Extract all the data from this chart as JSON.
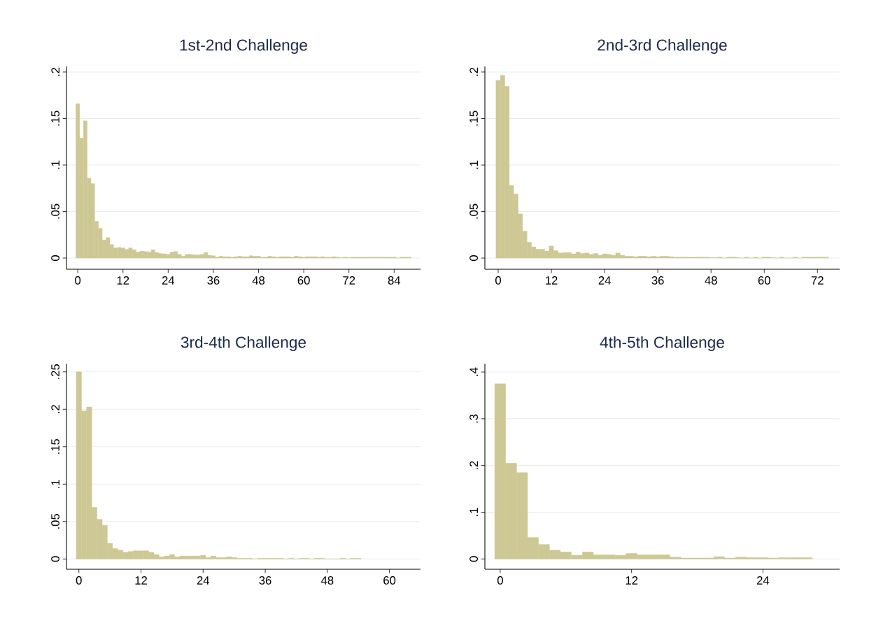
{
  "chart_data": [
    {
      "type": "histogram",
      "title": "1st-2nd Challenge",
      "color": "#cdc894",
      "grid": "y",
      "bins": [
        -0.5,
        0.5,
        1.5,
        2.5,
        3.5,
        4.5,
        5.5,
        6.5,
        7.5,
        8.5,
        9.5,
        10.5,
        11.5,
        12.5,
        13.5,
        14.5,
        15.5,
        16.5,
        17.5,
        18.5,
        19.5,
        20.5,
        21.5,
        22.5,
        23.5,
        24.5,
        25.5,
        26.5,
        27.5,
        28.5,
        29.5,
        30.5,
        31.5,
        32.5,
        33.5,
        34.5,
        35.5,
        36.5,
        37.5,
        38.5,
        39.5,
        40.5,
        41.5,
        42.5,
        43.5,
        44.5,
        45.5,
        46.5,
        47.5,
        48.5,
        49.5,
        50.5,
        51.5,
        52.5,
        53.5,
        54.5,
        55.5,
        56.5,
        57.5,
        58.5,
        59.5,
        60.5,
        61.5,
        62.5,
        63.5,
        64.5,
        65.5,
        66.5,
        67.5,
        68.5,
        69.5,
        70.5,
        71.5,
        72.5,
        73.5,
        74.5,
        75.5,
        76.5,
        77.5,
        78.5,
        79.5,
        80.5,
        81.5,
        82.5,
        83.5,
        84.5,
        85.5,
        86.5,
        87.5,
        88.5
      ],
      "values": [
        0.166,
        0.129,
        0.1475,
        0.086,
        0.08,
        0.0395,
        0.032,
        0.0195,
        0.022,
        0.0145,
        0.011,
        0.0115,
        0.011,
        0.0095,
        0.011,
        0.009,
        0.0065,
        0.0075,
        0.007,
        0.0065,
        0.009,
        0.006,
        0.005,
        0.0045,
        0.004,
        0.0065,
        0.007,
        0.004,
        0.002,
        0.004,
        0.004,
        0.0035,
        0.0035,
        0.004,
        0.006,
        0.003,
        0.0025,
        0.001,
        0.002,
        0.0015,
        0.0015,
        0.001,
        0.0015,
        0.002,
        0.0015,
        0.0015,
        0.0025,
        0.002,
        0.002,
        0.001,
        0.001,
        0.002,
        0.0015,
        0.001,
        0.0015,
        0.0015,
        0.0015,
        0.001,
        0.002,
        0.0015,
        0.001,
        0.0015,
        0.0015,
        0.0015,
        0.001,
        0.0015,
        0.001,
        0.001,
        0.0015,
        0.001,
        0.0005,
        0.001,
        0.0005,
        0.001,
        0.001,
        0.001,
        0.001,
        0.001,
        0.001,
        0.001,
        0.001,
        0.001,
        0.001,
        0.001,
        0.001,
        0,
        0.001,
        0.001,
        0.001
      ],
      "xlim": [
        -3,
        91
      ],
      "ylim": [
        -0.012,
        0.206
      ],
      "xticks": [
        0,
        12,
        24,
        36,
        48,
        60,
        72,
        84
      ],
      "yticks": [
        0,
        {
          "value": 0.05,
          "label": ".05"
        },
        {
          "value": 0.1,
          "label": ".1"
        },
        {
          "value": 0.15,
          "label": ".15"
        },
        {
          "value": 0.2,
          "label": ".2"
        }
      ]
    },
    {
      "type": "histogram",
      "title": "2nd-3rd Challenge",
      "color": "#cdc894",
      "grid": "y",
      "bins": [
        -0.5,
        0.5,
        1.5,
        2.5,
        3.5,
        4.5,
        5.5,
        6.5,
        7.5,
        8.5,
        9.5,
        10.5,
        11.5,
        12.5,
        13.5,
        14.5,
        15.5,
        16.5,
        17.5,
        18.5,
        19.5,
        20.5,
        21.5,
        22.5,
        23.5,
        24.5,
        25.5,
        26.5,
        27.5,
        28.5,
        29.5,
        30.5,
        31.5,
        32.5,
        33.5,
        34.5,
        35.5,
        36.5,
        37.5,
        38.5,
        39.5,
        40.5,
        41.5,
        42.5,
        43.5,
        44.5,
        45.5,
        46.5,
        47.5,
        48.5,
        49.5,
        50.5,
        51.5,
        52.5,
        53.5,
        54.5,
        55.5,
        56.5,
        57.5,
        58.5,
        59.5,
        60.5,
        61.5,
        62.5,
        63.5,
        64.5,
        65.5,
        66.5,
        67.5,
        68.5,
        69.5,
        70.5,
        71.5,
        72.5,
        73.5,
        74.5
      ],
      "values": [
        0.191,
        0.1965,
        0.1845,
        0.078,
        0.069,
        0.0475,
        0.029,
        0.017,
        0.012,
        0.0095,
        0.0095,
        0.0075,
        0.013,
        0.008,
        0.0055,
        0.006,
        0.006,
        0.0045,
        0.0065,
        0.005,
        0.0055,
        0.004,
        0.005,
        0.003,
        0.0045,
        0.004,
        0.003,
        0.0055,
        0.003,
        0.002,
        0.002,
        0.0015,
        0.002,
        0.002,
        0.0015,
        0.002,
        0.0015,
        0.002,
        0.002,
        0.0015,
        0.001,
        0.001,
        0.001,
        0.001,
        0.001,
        0.001,
        0.001,
        0.001,
        0.0005,
        0.0005,
        0.001,
        0,
        0.001,
        0.001,
        0.0005,
        0,
        0.001,
        0,
        0.001,
        0,
        0.001,
        0.001,
        0.0005,
        0,
        0.001,
        0,
        0,
        0.001,
        0,
        0.001,
        0.001,
        0.001,
        0.001,
        0.001,
        0.001
      ],
      "xlim": [
        -3,
        77
      ],
      "ylim": [
        -0.012,
        0.206
      ],
      "xticks": [
        0,
        12,
        24,
        36,
        48,
        60,
        72
      ],
      "yticks": [
        0,
        {
          "value": 0.05,
          "label": ".05"
        },
        {
          "value": 0.1,
          "label": ".1"
        },
        {
          "value": 0.15,
          "label": ".15"
        },
        {
          "value": 0.2,
          "label": ".2"
        }
      ]
    },
    {
      "type": "histogram",
      "title": "3rd-4th Challenge",
      "color": "#cdc894",
      "grid": "y",
      "bins": [
        -0.5,
        0.5,
        1.5,
        2.5,
        3.5,
        4.5,
        5.5,
        6.5,
        7.5,
        8.5,
        9.5,
        10.5,
        11.5,
        12.5,
        13.5,
        14.5,
        15.5,
        16.5,
        17.5,
        18.5,
        19.5,
        20.5,
        21.5,
        22.5,
        23.5,
        24.5,
        25.5,
        26.5,
        27.5,
        28.5,
        29.5,
        30.5,
        31.5,
        32.5,
        33.5,
        34.5,
        35.5,
        36.5,
        37.5,
        38.5,
        39.5,
        40.5,
        41.5,
        42.5,
        43.5,
        44.5,
        45.5,
        46.5,
        47.5,
        48.5,
        49.5,
        50.5,
        51.5,
        52.5,
        53.5,
        54.5
      ],
      "values": [
        0.25,
        0.198,
        0.203,
        0.069,
        0.053,
        0.045,
        0.021,
        0.014,
        0.012,
        0.009,
        0.01,
        0.011,
        0.011,
        0.011,
        0.009,
        0.006,
        0.003,
        0.004,
        0.006,
        0.003,
        0.004,
        0.004,
        0.004,
        0.004,
        0.005,
        0.002,
        0.004,
        0.002,
        0.002,
        0.003,
        0.002,
        0.001,
        0.001,
        0.001,
        0,
        0.001,
        0.001,
        0.001,
        0.001,
        0.001,
        0,
        0.001,
        0,
        0.001,
        0.001,
        0,
        0.001,
        0.001,
        0,
        0,
        0,
        0.001,
        0,
        0.001,
        0.001
      ],
      "xlim": [
        -2.4,
        66
      ],
      "ylim": [
        -0.0137,
        0.261
      ],
      "xticks": [
        0,
        12,
        24,
        36,
        48,
        60
      ],
      "yticks": [
        0,
        {
          "value": 0.05,
          "label": ".05"
        },
        {
          "value": 0.1,
          "label": ".1"
        },
        {
          "value": 0.15,
          "label": ".15"
        },
        {
          "value": 0.2,
          "label": ".2"
        },
        {
          "value": 0.25,
          "label": ".25"
        }
      ]
    },
    {
      "type": "histogram",
      "title": "4th-5th Challenge",
      "color": "#cdc894",
      "grid": "y",
      "bins": [
        -0.5,
        0.5,
        1.5,
        2.5,
        3.5,
        4.5,
        5.5,
        6.5,
        7.5,
        8.5,
        9.5,
        10.5,
        11.5,
        12.5,
        13.5,
        14.5,
        15.5,
        16.5,
        17.5,
        18.5,
        19.5,
        20.5,
        21.5,
        22.5,
        23.5,
        24.5,
        25.5,
        26.5,
        27.5,
        28.5
      ],
      "values": [
        0.375,
        0.205,
        0.185,
        0.046,
        0.031,
        0.019,
        0.015,
        0.008,
        0.015,
        0.009,
        0.009,
        0.008,
        0.012,
        0.009,
        0.009,
        0.009,
        0.004,
        0.002,
        0.002,
        0.002,
        0.005,
        0.002,
        0.004,
        0.003,
        0.003,
        0.002,
        0.003,
        0.003,
        0.003
      ],
      "xlim": [
        -1.4,
        31
      ],
      "ylim": [
        -0.022,
        0.418
      ],
      "xticks": [
        0,
        12,
        24
      ],
      "yticks": [
        0,
        {
          "value": 0.1,
          "label": ".1"
        },
        {
          "value": 0.2,
          "label": ".2"
        },
        {
          "value": 0.3,
          "label": ".3"
        },
        {
          "value": 0.4,
          "label": ".4"
        }
      ]
    }
  ]
}
